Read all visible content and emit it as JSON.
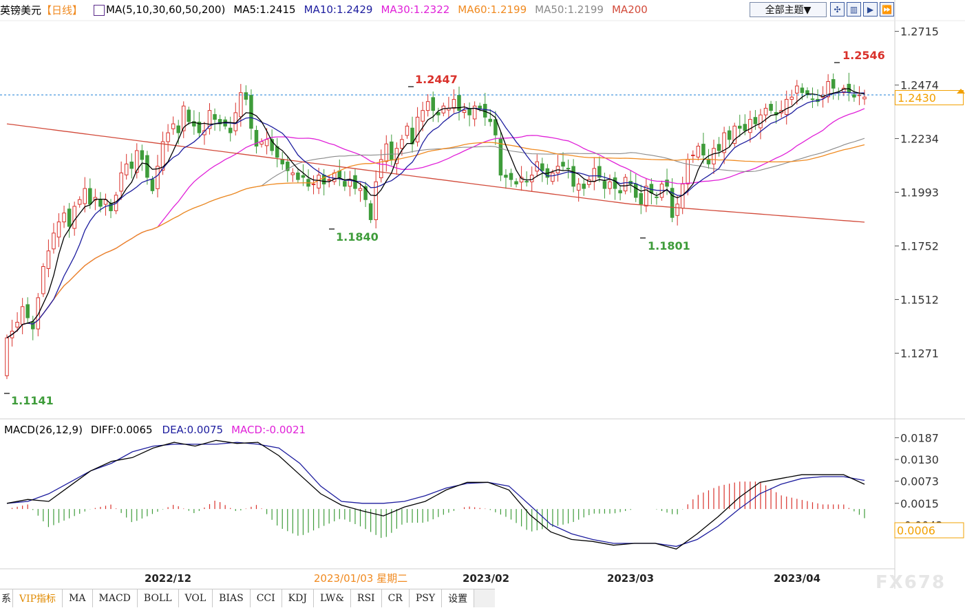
{
  "header": {
    "symbol": "英镑美元",
    "period": "【日线】",
    "ma_title": "MA(5,10,30,60,50,200)",
    "ma5": "MA5:1.2415",
    "ma10": "MA10:1.2429",
    "ma30": "MA30:1.2322",
    "ma60": "MA60:1.2199",
    "ma50": "MA50:1.2199",
    "ma200": "MA200",
    "theme_button": "全部主题▼"
  },
  "macd_header": {
    "title": "MACD(26,12,9)",
    "diff": "DIFF:0.0065",
    "dea": "DEA:0.0075",
    "macd": "MACD:-0.0021"
  },
  "current_price": "1.2430",
  "current_macd": "0.0006",
  "hover_date": "2023/01/03 星期二",
  "tabs": [
    "系",
    "VIP指标",
    "MA",
    "MACD",
    "BOLL",
    "VOL",
    "BIAS",
    "CCI",
    "KDJ",
    "LW&",
    "RSI",
    "CR",
    "PSY",
    "设置"
  ],
  "active_tab": "VIP指标",
  "brand": "FX678",
  "colors": {
    "up": "#d9312b",
    "down": "#3e9c3a",
    "ma5": "#000000",
    "ma10": "#1c1c9e",
    "ma30": "#e020d8",
    "ma60": "#f08a20",
    "ma50": "#8a8a8a",
    "ma200": "#d24a3a",
    "dash": "#1a7cd6"
  },
  "chart_data": {
    "type": "candlestick",
    "price_axis": {
      "ticks": [
        "1.2715",
        "1.2474",
        "1.2234",
        "1.1993",
        "1.1752",
        "1.1512",
        "1.1271"
      ],
      "range": [
        1.0995,
        1.276
      ]
    },
    "macd_axis": {
      "ticks": [
        "0.0187",
        "0.0130",
        "0.0073",
        "0.0015",
        "-0.0042"
      ],
      "range": [
        -0.0155,
        0.0195
      ]
    },
    "x_labels": [
      "2022/12",
      "2023/02",
      "2023/03",
      "2023/04"
    ],
    "annotations": {
      "high1": "1.2447",
      "low1": "1.1840",
      "low2": "1.1801",
      "high2": "1.2546",
      "start_low": "1.1141"
    },
    "close": [
      1.134,
      1.137,
      1.141,
      1.148,
      1.143,
      1.138,
      1.152,
      1.166,
      1.173,
      1.181,
      1.186,
      1.19,
      1.184,
      1.193,
      1.196,
      1.201,
      1.194,
      1.197,
      1.193,
      1.196,
      1.191,
      1.198,
      1.208,
      1.212,
      1.21,
      1.218,
      1.214,
      1.206,
      1.2,
      1.211,
      1.222,
      1.226,
      1.23,
      1.226,
      1.238,
      1.231,
      1.229,
      1.226,
      1.227,
      1.236,
      1.232,
      1.23,
      1.229,
      1.226,
      1.235,
      1.244,
      1.241,
      1.228,
      1.22,
      1.222,
      1.223,
      1.218,
      1.215,
      1.212,
      1.209,
      1.208,
      1.205,
      1.206,
      1.202,
      1.203,
      1.207,
      1.203,
      1.205,
      1.208,
      1.206,
      1.202,
      1.205,
      1.201,
      1.201,
      1.196,
      1.187,
      1.204,
      1.214,
      1.221,
      1.214,
      1.219,
      1.223,
      1.229,
      1.221,
      1.233,
      1.236,
      1.24,
      1.236,
      1.234,
      1.238,
      1.237,
      1.241,
      1.236,
      1.236,
      1.234,
      1.238,
      1.237,
      1.233,
      1.231,
      1.225,
      1.207,
      1.206,
      1.205,
      1.203,
      1.206,
      1.204,
      1.207,
      1.213,
      1.209,
      1.206,
      1.208,
      1.211,
      1.211,
      1.21,
      1.202,
      1.203,
      1.201,
      1.205,
      1.21,
      1.206,
      1.201,
      1.204,
      1.201,
      1.199,
      1.206,
      1.203,
      1.197,
      1.194,
      1.202,
      1.199,
      1.197,
      1.203,
      1.202,
      1.188,
      1.194,
      1.203,
      1.214,
      1.216,
      1.22,
      1.216,
      1.212,
      1.219,
      1.218,
      1.226,
      1.223,
      1.229,
      1.228,
      1.227,
      1.232,
      1.23,
      1.234,
      1.237,
      1.236,
      1.234,
      1.236,
      1.241,
      1.242,
      1.247,
      1.244,
      1.243,
      1.241,
      1.24,
      1.243,
      1.249,
      1.246,
      1.244,
      1.246,
      1.244,
      1.242,
      1.243,
      1.242
    ],
    "macd_lines": {
      "diff": [
        0.0015,
        0.0025,
        0.002,
        0.006,
        0.01,
        0.0125,
        0.0135,
        0.016,
        0.0175,
        0.0165,
        0.018,
        0.0172,
        0.0175,
        0.014,
        0.009,
        0.004,
        0.001,
        -0.0005,
        -0.0018,
        0.0005,
        0.002,
        0.005,
        0.007,
        0.007,
        0.005,
        -0.0015,
        -0.006,
        -0.008,
        -0.0085,
        -0.0095,
        -0.009,
        -0.009,
        -0.0105,
        -0.0065,
        -0.002,
        0.003,
        0.007,
        0.008,
        0.009,
        0.009,
        0.009,
        0.0065
      ],
      "dea": [
        0.0015,
        0.002,
        0.004,
        0.007,
        0.01,
        0.012,
        0.015,
        0.0165,
        0.017,
        0.017,
        0.017,
        0.0175,
        0.017,
        0.016,
        0.012,
        0.006,
        0.002,
        0.0015,
        0.0015,
        0.002,
        0.0035,
        0.0055,
        0.0067,
        0.007,
        0.006,
        0.001,
        -0.004,
        -0.0065,
        -0.008,
        -0.009,
        -0.009,
        -0.009,
        -0.0098,
        -0.008,
        -0.0045,
        0.0,
        0.004,
        0.0065,
        0.008,
        0.0085,
        0.0085,
        0.0075
      ]
    }
  }
}
